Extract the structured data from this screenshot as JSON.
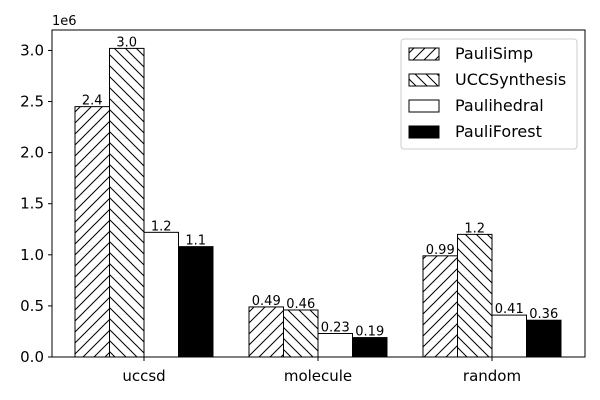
{
  "chart_data": {
    "type": "bar",
    "categories": [
      "uccsd",
      "molecule",
      "random"
    ],
    "series": [
      {
        "name": "PauliSimp",
        "values": [
          2450000,
          490000,
          990000
        ],
        "labels": [
          "2.4",
          "0.49",
          "0.99"
        ],
        "pattern": "hatch-forward",
        "color": "#ffffff"
      },
      {
        "name": "UCCSynthesis",
        "values": [
          3020000,
          460000,
          1200000
        ],
        "labels": [
          "3.0",
          "0.46",
          "1.2"
        ],
        "pattern": "hatch-back",
        "color": "#ffffff"
      },
      {
        "name": "Paulihedral",
        "values": [
          1220000,
          230000,
          410000
        ],
        "labels": [
          "1.2",
          "0.23",
          "0.41"
        ],
        "pattern": "solid",
        "color": "#ffffff"
      },
      {
        "name": "PauliForest",
        "values": [
          1080000,
          190000,
          360000
        ],
        "labels": [
          "1.1",
          "0.19",
          "0.36"
        ],
        "pattern": "solid",
        "color": "#000000"
      }
    ],
    "ylim": [
      0,
      3200000
    ],
    "yticks": [
      0,
      500000,
      1000000,
      1500000,
      2000000,
      2500000,
      3000000
    ],
    "ytick_labels": [
      "0.0",
      "0.5",
      "1.0",
      "1.5",
      "2.0",
      "2.5",
      "3.0"
    ],
    "y_offset_label": "1e6",
    "title": "",
    "xlabel": "",
    "ylabel": "",
    "legend_position": "top-right",
    "grid": false
  }
}
